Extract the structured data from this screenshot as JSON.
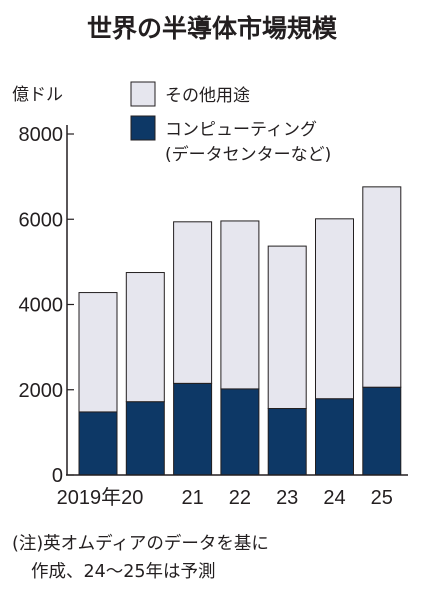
{
  "chart_data": {
    "type": "bar",
    "stacked": true,
    "title": "世界の半導体市場規模",
    "ylabel": "億ドル",
    "ylim": [
      0,
      8000
    ],
    "yticks": [
      0,
      2000,
      4000,
      6000,
      8000
    ],
    "categories": [
      "2019年20",
      "",
      "21",
      "22",
      "23",
      "24",
      "25"
    ],
    "category_labels": [
      "2019年",
      "20",
      "21",
      "22",
      "23",
      "24",
      "25"
    ],
    "series": [
      {
        "name": "コンピューティング",
        "name_line2": "(データセンターなど)",
        "color": "#0d3866",
        "values": [
          1480,
          1720,
          2150,
          2020,
          1560,
          1790,
          2060
        ]
      },
      {
        "name": "その他用途",
        "color": "#e6e6ee",
        "values": [
          2800,
          3030,
          3790,
          3940,
          3810,
          4220,
          4700
        ]
      }
    ],
    "note": [
      "(注)英オムディアのデータを基に",
      "作成、24〜25年は予測"
    ],
    "grid": false,
    "legend_position": "top"
  }
}
